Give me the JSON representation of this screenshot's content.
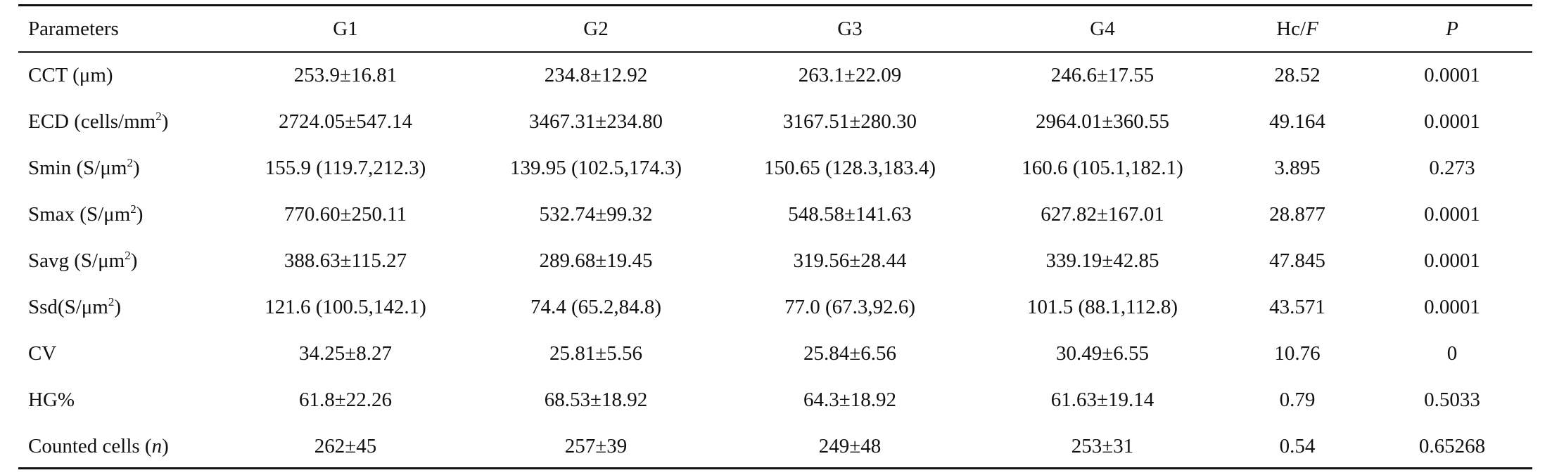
{
  "table": {
    "header": [
      [
        {
          "text": "Parameters"
        }
      ],
      [
        {
          "text": "G1"
        }
      ],
      [
        {
          "text": "G2"
        }
      ],
      [
        {
          "text": "G3"
        }
      ],
      [
        {
          "text": "G4"
        }
      ],
      [
        {
          "text": "Hc/"
        },
        {
          "text": "F",
          "style": "italic"
        }
      ],
      [
        {
          "text": "P",
          "style": "italic"
        }
      ]
    ],
    "rows": [
      {
        "label": [
          {
            "text": "CCT (μm)"
          }
        ],
        "cells": [
          "253.9±16.81",
          "234.8±12.92",
          "263.1±22.09",
          "246.6±17.55",
          "28.52",
          "0.0001"
        ]
      },
      {
        "label": [
          {
            "text": "ECD (cells/mm"
          },
          {
            "text": "2",
            "style": "sup"
          },
          {
            "text": ")"
          }
        ],
        "cells": [
          "2724.05±547.14",
          "3467.31±234.80",
          "3167.51±280.30",
          "2964.01±360.55",
          "49.164",
          "0.0001"
        ]
      },
      {
        "label": [
          {
            "text": "Smin (S/μm"
          },
          {
            "text": "2",
            "style": "sup"
          },
          {
            "text": ")"
          }
        ],
        "cells": [
          "155.9 (119.7,212.3)",
          "139.95 (102.5,174.3)",
          "150.65 (128.3,183.4)",
          "160.6 (105.1,182.1)",
          "3.895",
          "0.273"
        ]
      },
      {
        "label": [
          {
            "text": "Smax (S/μm"
          },
          {
            "text": "2",
            "style": "sup"
          },
          {
            "text": ")"
          }
        ],
        "cells": [
          "770.60±250.11",
          "532.74±99.32",
          "548.58±141.63",
          "627.82±167.01",
          "28.877",
          "0.0001"
        ]
      },
      {
        "label": [
          {
            "text": "Savg (S/μm"
          },
          {
            "text": "2",
            "style": "sup"
          },
          {
            "text": ")"
          }
        ],
        "cells": [
          "388.63±115.27",
          "289.68±19.45",
          "319.56±28.44",
          "339.19±42.85",
          "47.845",
          "0.0001"
        ]
      },
      {
        "label": [
          {
            "text": "Ssd(S/μm"
          },
          {
            "text": "2",
            "style": "sup"
          },
          {
            "text": ")"
          }
        ],
        "cells": [
          "121.6 (100.5,142.1)",
          "74.4 (65.2,84.8)",
          "77.0 (67.3,92.6)",
          "101.5 (88.1,112.8)",
          "43.571",
          "0.0001"
        ]
      },
      {
        "label": [
          {
            "text": "CV"
          }
        ],
        "cells": [
          "34.25±8.27",
          "25.81±5.56",
          "25.84±6.56",
          "30.49±6.55",
          "10.76",
          "0"
        ]
      },
      {
        "label": [
          {
            "text": "HG%"
          }
        ],
        "cells": [
          "61.8±22.26",
          "68.53±18.92",
          "64.3±18.92",
          "61.63±19.14",
          "0.79",
          "0.5033"
        ]
      },
      {
        "label": [
          {
            "text": "Counted cells ("
          },
          {
            "text": "n",
            "style": "italic"
          },
          {
            "text": ")"
          }
        ],
        "cells": [
          "262±45",
          "257±39",
          "249±48",
          "253±31",
          "0.54",
          "0.65268"
        ]
      }
    ]
  }
}
